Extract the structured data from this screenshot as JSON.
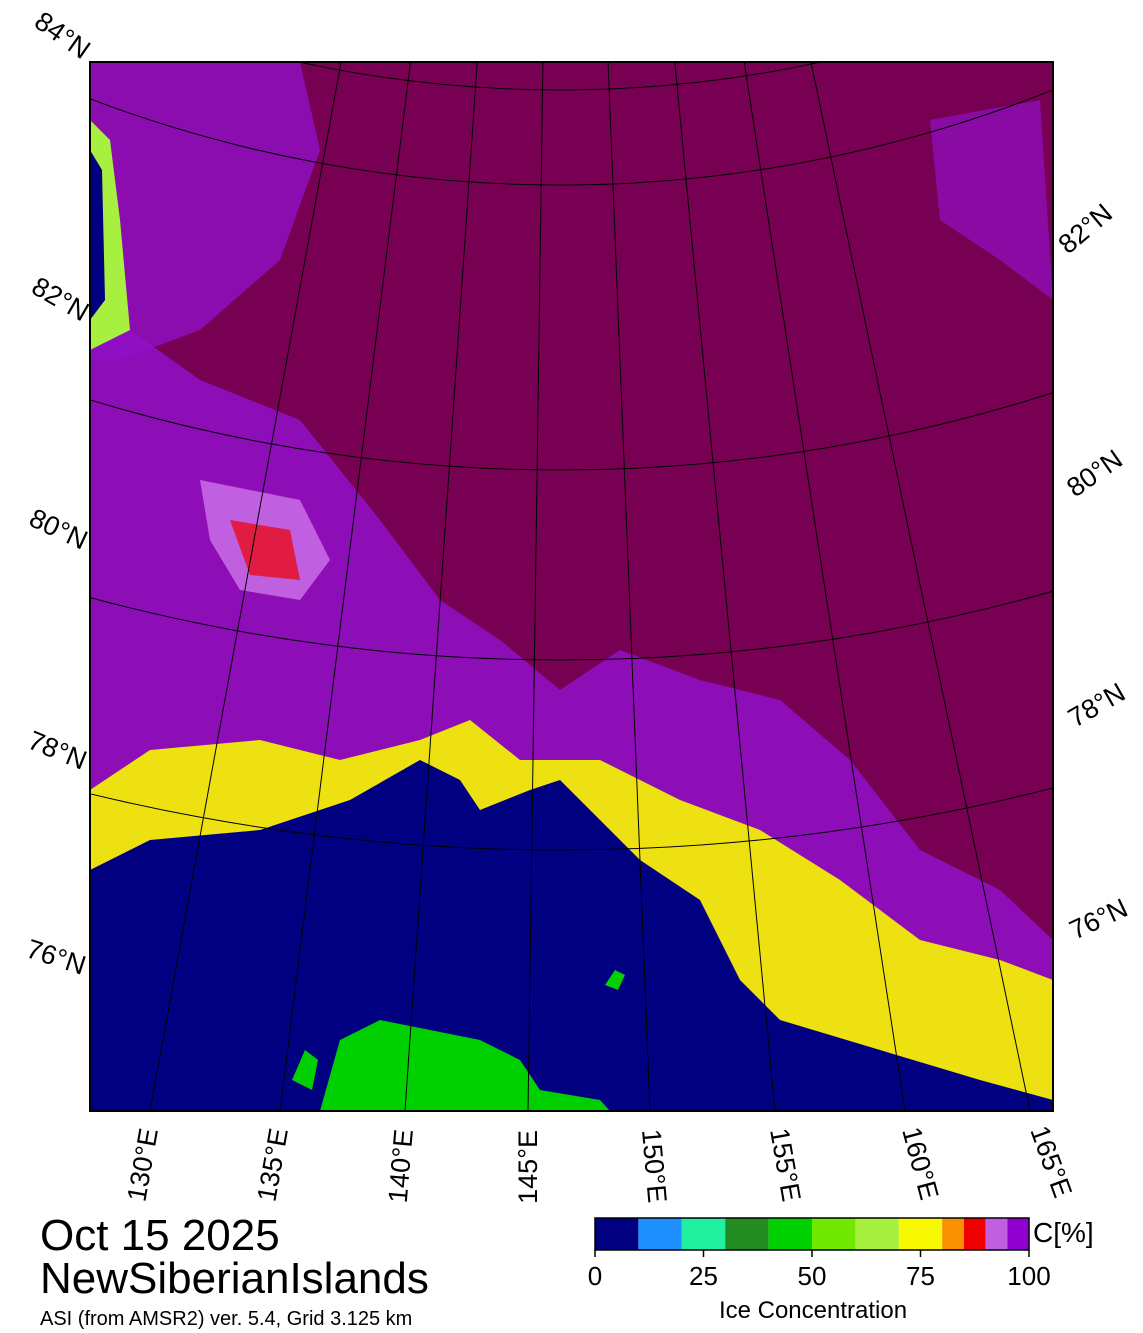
{
  "map": {
    "date": "Oct 15 2025",
    "region": "NewSiberianIslands",
    "subtitle": "ASI (from AMSR2) ver. 5.4,  Grid 3.125 km",
    "lat_labels_left": [
      "84°N",
      "82°N",
      "80°N",
      "78°N",
      "76°N"
    ],
    "lat_labels_right": [
      "82°N",
      "80°N",
      "78°N",
      "76°N"
    ],
    "lon_labels": [
      "130°E",
      "135°E",
      "140°E",
      "145°E",
      "150°E",
      "155°E",
      "160°E",
      "165°E"
    ]
  },
  "colorbar": {
    "bounds": [
      0,
      10,
      20,
      30,
      40,
      50,
      60,
      70,
      80,
      85,
      90,
      95,
      100
    ],
    "colors": [
      "#000080",
      "#1e90ff",
      "#20f0a0",
      "#228b22",
      "#00d000",
      "#70e800",
      "#a8f040",
      "#f8f800",
      "#f89000",
      "#f00000",
      "#c060e0",
      "#9000d0"
    ],
    "lim": [
      0,
      100
    ],
    "ticks": [
      0,
      25,
      50,
      75,
      100
    ],
    "label": "Ice Concentration",
    "unit": "C[%]"
  }
}
